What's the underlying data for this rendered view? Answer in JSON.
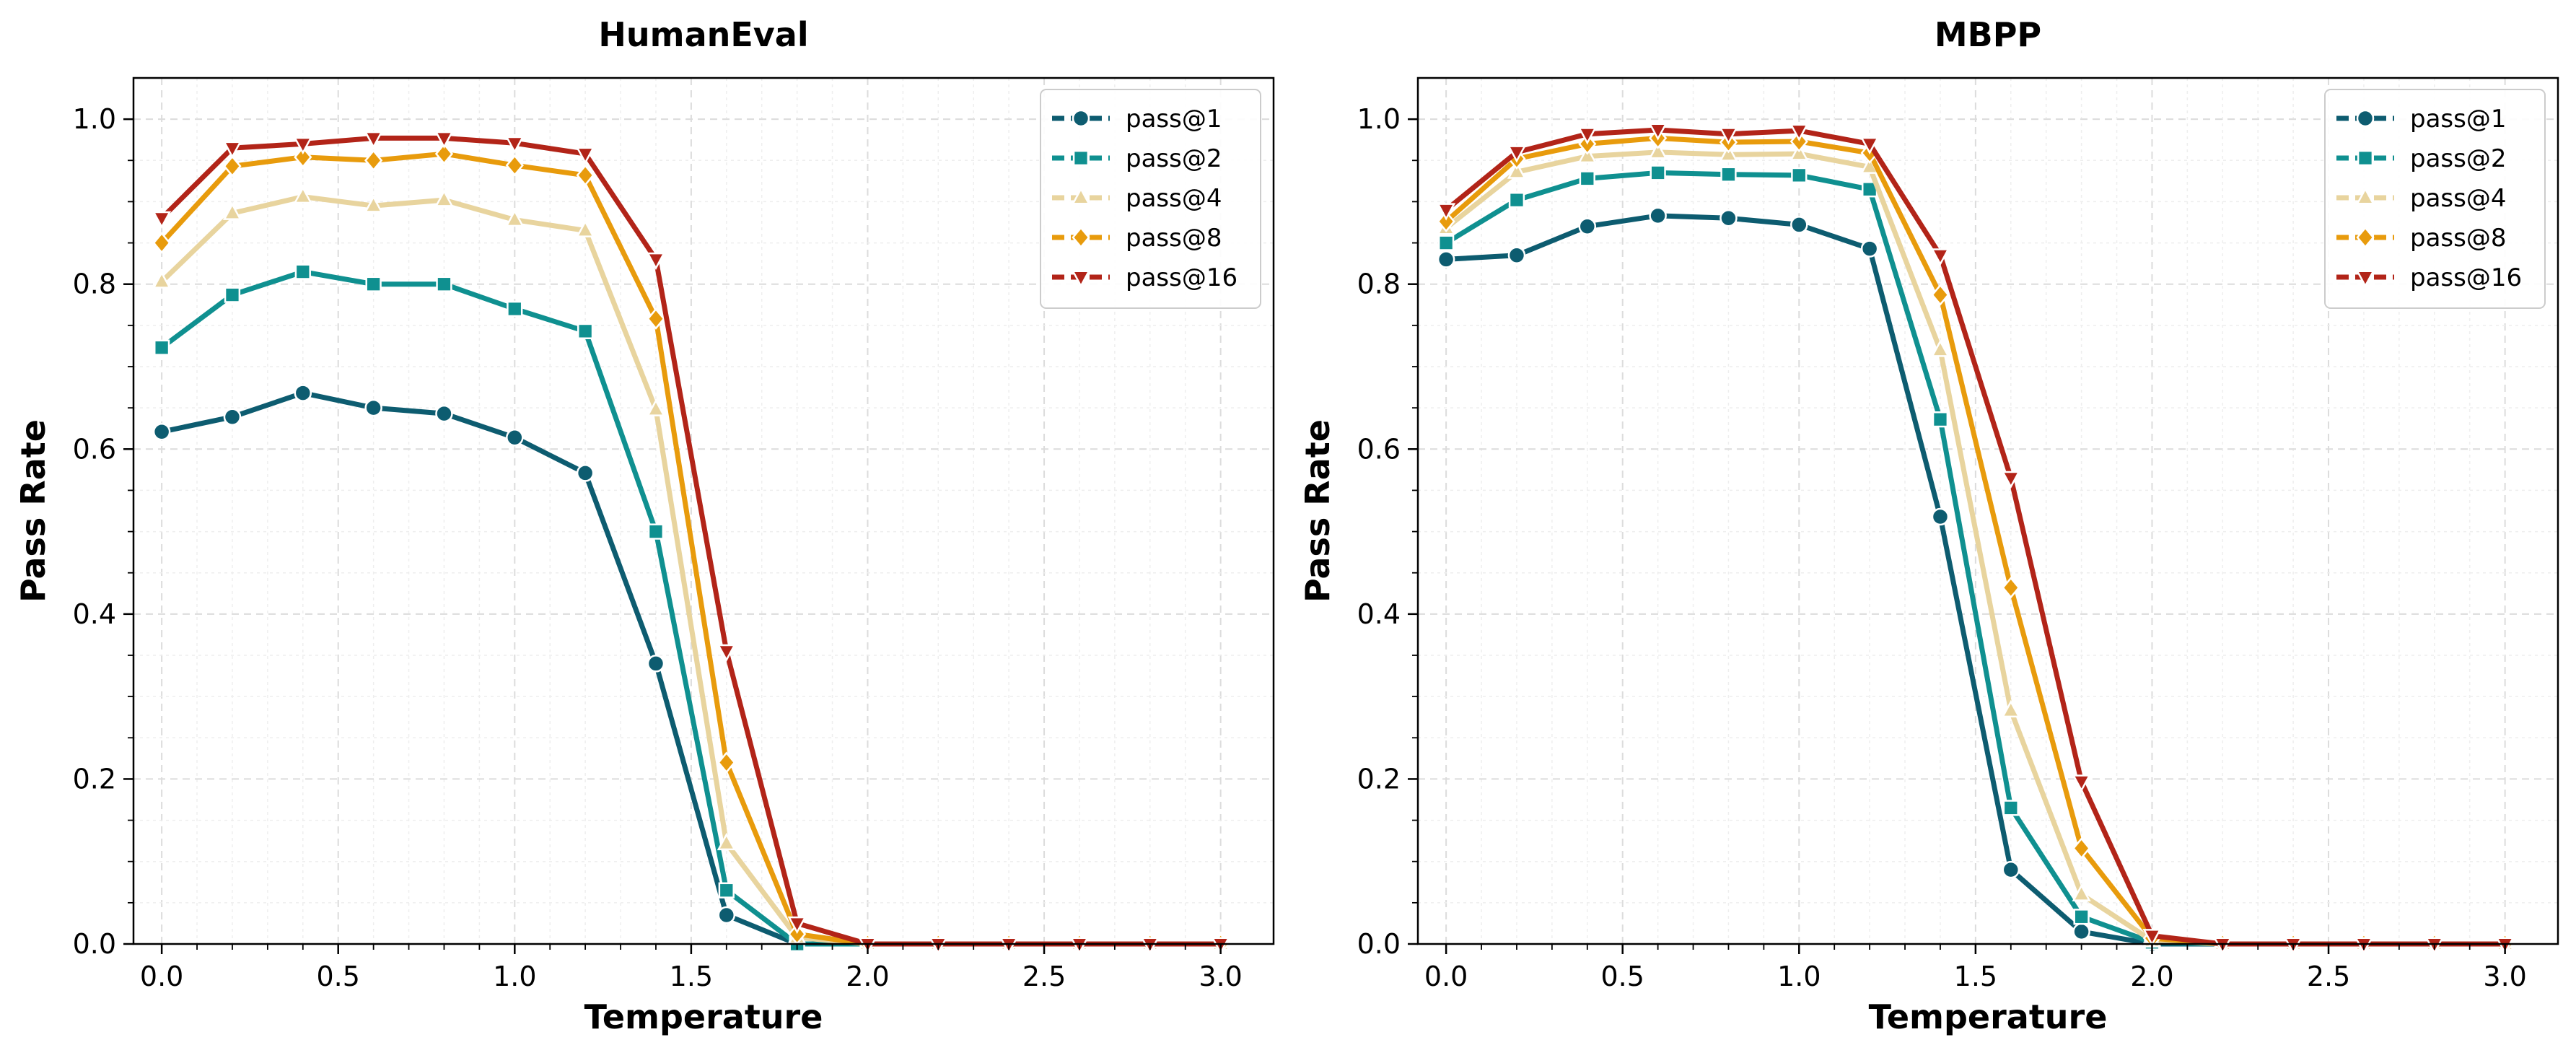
{
  "chart_data": [
    {
      "type": "line",
      "title": "HumanEval",
      "xlabel": "Temperature",
      "ylabel": "Pass Rate",
      "xlim": [
        -0.08,
        3.15
      ],
      "ylim": [
        0.0,
        1.05
      ],
      "xticks": [
        0.0,
        0.5,
        1.0,
        1.5,
        2.0,
        2.5,
        3.0
      ],
      "xtick_labels": [
        "0.0",
        "0.5",
        "1.0",
        "1.5",
        "2.0",
        "2.5",
        "3.0"
      ],
      "yticks": [
        0.0,
        0.2,
        0.4,
        0.6,
        0.8,
        1.0
      ],
      "ytick_labels": [
        "0.0",
        "0.2",
        "0.4",
        "0.6",
        "0.8",
        "1.0"
      ],
      "grid": true,
      "legend_position": "top-right",
      "x": [
        0.0,
        0.2,
        0.4,
        0.6,
        0.8,
        1.0,
        1.2,
        1.4,
        1.6,
        1.8,
        2.0,
        2.2,
        2.4,
        2.6,
        2.8,
        3.0
      ],
      "series": [
        {
          "name": "pass@1",
          "color": "#0d5c70",
          "marker": "circle",
          "values": [
            0.621,
            0.639,
            0.668,
            0.65,
            0.643,
            0.614,
            0.571,
            0.34,
            0.035,
            0.0,
            0.0,
            0.0,
            0.0,
            0.0,
            0.0,
            0.0
          ]
        },
        {
          "name": "pass@2",
          "color": "#0f9090",
          "marker": "square",
          "values": [
            0.723,
            0.787,
            0.815,
            0.8,
            0.8,
            0.77,
            0.743,
            0.5,
            0.065,
            0.0,
            0.0,
            0.0,
            0.0,
            0.0,
            0.0,
            0.0
          ]
        },
        {
          "name": "pass@4",
          "color": "#e8d49e",
          "marker": "triangle-up",
          "values": [
            0.803,
            0.886,
            0.906,
            0.895,
            0.902,
            0.878,
            0.865,
            0.648,
            0.122,
            0.008,
            0.0,
            0.0,
            0.0,
            0.0,
            0.0,
            0.0
          ]
        },
        {
          "name": "pass@8",
          "color": "#e89b0c",
          "marker": "diamond",
          "values": [
            0.85,
            0.943,
            0.954,
            0.95,
            0.958,
            0.944,
            0.932,
            0.758,
            0.22,
            0.012,
            0.0,
            0.0,
            0.0,
            0.0,
            0.0,
            0.0
          ]
        },
        {
          "name": "pass@16",
          "color": "#b22418",
          "marker": "triangle-down",
          "values": [
            0.88,
            0.965,
            0.97,
            0.977,
            0.977,
            0.971,
            0.958,
            0.83,
            0.355,
            0.025,
            0.0,
            0.0,
            0.0,
            0.0,
            0.0,
            0.0
          ]
        }
      ]
    },
    {
      "type": "line",
      "title": "MBPP",
      "xlabel": "Temperature",
      "ylabel": "Pass Rate",
      "xlim": [
        -0.08,
        3.15
      ],
      "ylim": [
        0.0,
        1.05
      ],
      "xticks": [
        0.0,
        0.5,
        1.0,
        1.5,
        2.0,
        2.5,
        3.0
      ],
      "xtick_labels": [
        "0.0",
        "0.5",
        "1.0",
        "1.5",
        "2.0",
        "2.5",
        "3.0"
      ],
      "yticks": [
        0.0,
        0.2,
        0.4,
        0.6,
        0.8,
        1.0
      ],
      "ytick_labels": [
        "0.0",
        "0.2",
        "0.4",
        "0.6",
        "0.8",
        "1.0"
      ],
      "grid": true,
      "legend_position": "top-right",
      "x": [
        0.0,
        0.2,
        0.4,
        0.6,
        0.8,
        1.0,
        1.2,
        1.4,
        1.6,
        1.8,
        2.0,
        2.2,
        2.4,
        2.6,
        2.8,
        3.0
      ],
      "series": [
        {
          "name": "pass@1",
          "color": "#0d5c70",
          "marker": "circle",
          "values": [
            0.83,
            0.835,
            0.87,
            0.883,
            0.88,
            0.872,
            0.843,
            0.518,
            0.09,
            0.015,
            0.0,
            0.0,
            0.0,
            0.0,
            0.0,
            0.0
          ]
        },
        {
          "name": "pass@2",
          "color": "#0f9090",
          "marker": "square",
          "values": [
            0.85,
            0.902,
            0.928,
            0.935,
            0.933,
            0.932,
            0.915,
            0.636,
            0.165,
            0.033,
            0.002,
            0.0,
            0.0,
            0.0,
            0.0,
            0.0
          ]
        },
        {
          "name": "pass@4",
          "color": "#e8d49e",
          "marker": "triangle-up",
          "values": [
            0.868,
            0.936,
            0.955,
            0.96,
            0.957,
            0.958,
            0.942,
            0.72,
            0.283,
            0.06,
            0.004,
            0.0,
            0.0,
            0.0,
            0.0,
            0.0
          ]
        },
        {
          "name": "pass@8",
          "color": "#e89b0c",
          "marker": "diamond",
          "values": [
            0.876,
            0.952,
            0.97,
            0.977,
            0.972,
            0.973,
            0.959,
            0.787,
            0.432,
            0.116,
            0.007,
            0.0,
            0.0,
            0.0,
            0.0,
            0.0
          ]
        },
        {
          "name": "pass@16",
          "color": "#b22418",
          "marker": "triangle-down",
          "values": [
            0.89,
            0.96,
            0.982,
            0.987,
            0.982,
            0.986,
            0.97,
            0.835,
            0.565,
            0.197,
            0.01,
            0.0,
            0.0,
            0.0,
            0.0,
            0.0
          ]
        }
      ]
    }
  ]
}
